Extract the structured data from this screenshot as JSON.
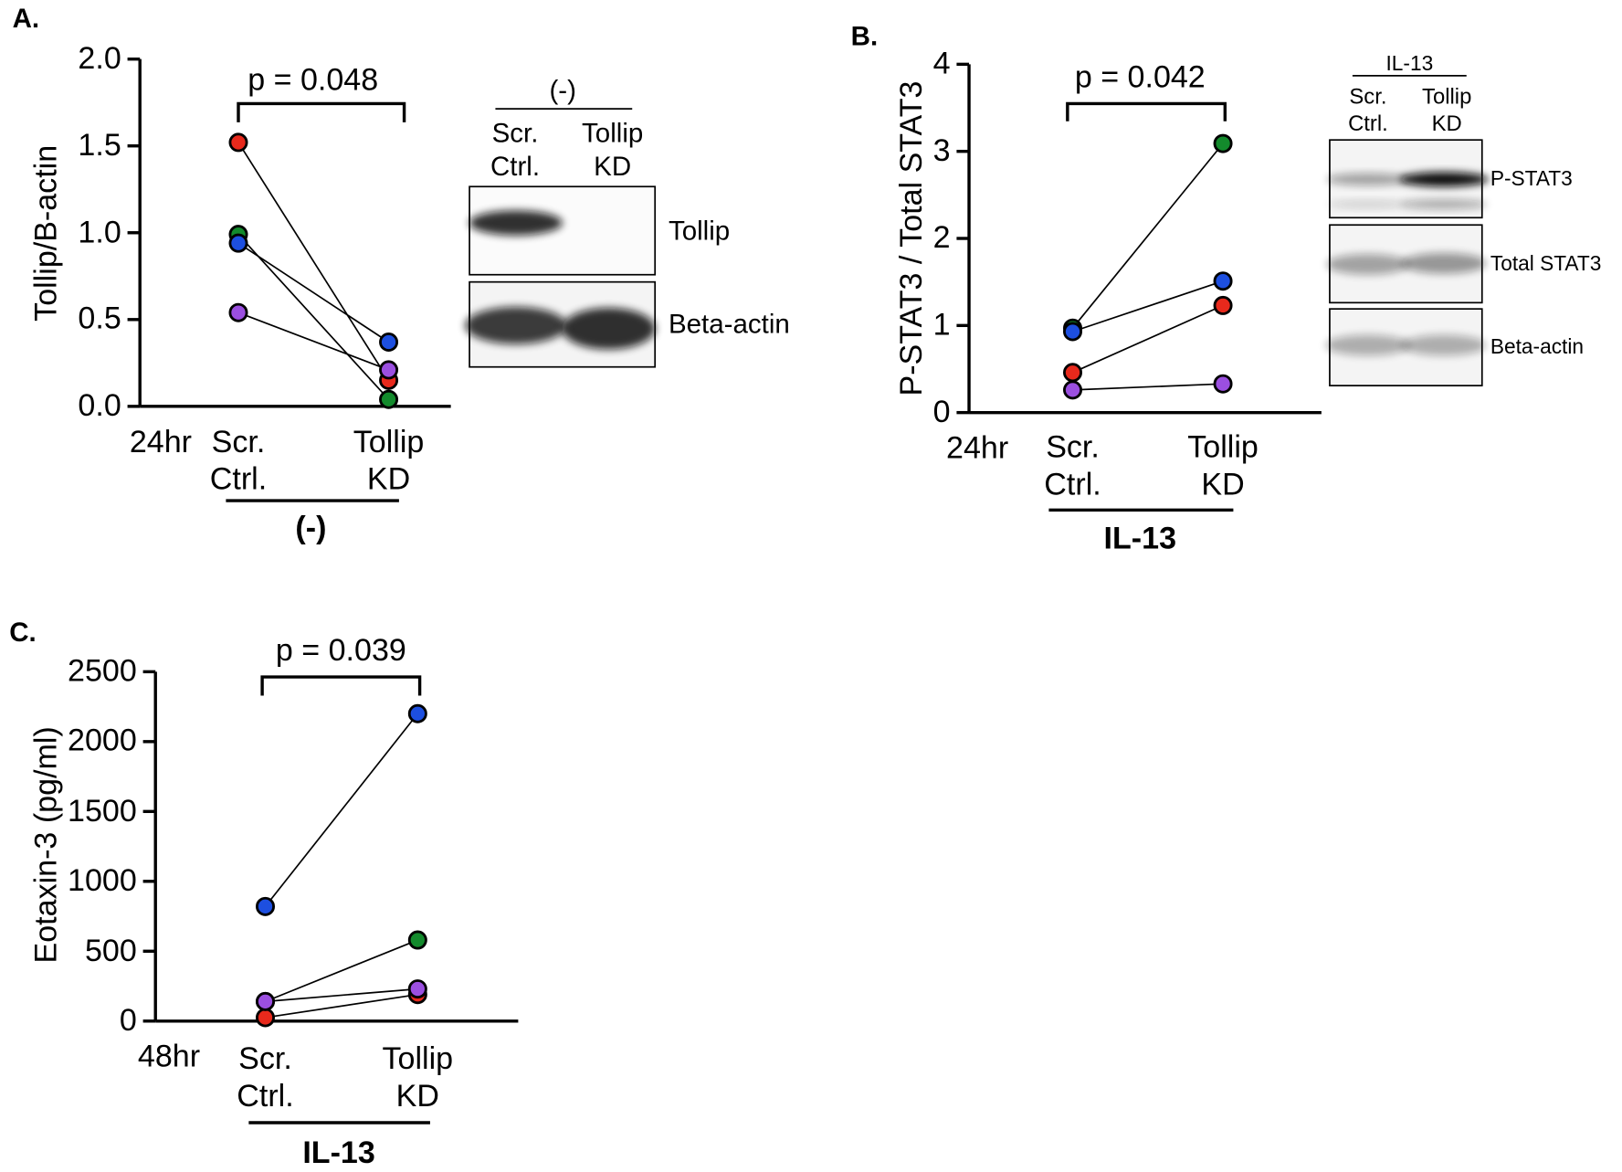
{
  "chart_data": [
    {
      "type": "line",
      "panel_label": "A.",
      "ylabel": "Tollip/B-actin",
      "time_label": "24hr",
      "categories": [
        "Scr.\nCtrl.",
        "Tollip\nKD"
      ],
      "group_label": "(-)",
      "annotation": "p = 0.048",
      "ylim": [
        0,
        2
      ],
      "yticks": [
        {
          "value": 0,
          "label": "0.0"
        },
        {
          "value": 0.5,
          "label": "0.5"
        },
        {
          "value": 1,
          "label": "1.0"
        },
        {
          "value": 1.5,
          "label": "1.5"
        },
        {
          "value": 2,
          "label": "2.0"
        }
      ],
      "series": [
        {
          "color": "#e8291c",
          "values": [
            1.52,
            0.15
          ]
        },
        {
          "color": "#138a2c",
          "values": [
            0.99,
            0.04
          ]
        },
        {
          "color": "#1d4fe0",
          "values": [
            0.94,
            0.37
          ]
        },
        {
          "color": "#9b4fe0",
          "values": [
            0.54,
            0.21
          ]
        }
      ],
      "blot": {
        "header": "(-)",
        "lanes": [
          "Scr.\nCtrl.",
          "Tollip\nKD"
        ],
        "bands": [
          "Tollip",
          "Beta-actin"
        ]
      }
    },
    {
      "type": "line",
      "panel_label": "B.",
      "ylabel": "P-STAT3 / Total STAT3",
      "time_label": "24hr",
      "categories": [
        "Scr.\nCtrl.",
        "Tollip\nKD"
      ],
      "group_label": "IL-13",
      "annotation": "p = 0.042",
      "ylim": [
        0,
        4
      ],
      "yticks": [
        0,
        1,
        2,
        3,
        4
      ],
      "series": [
        {
          "color": "#138a2c",
          "values": [
            0.97,
            3.09
          ]
        },
        {
          "color": "#1d4fe0",
          "values": [
            0.93,
            1.51
          ]
        },
        {
          "color": "#e8291c",
          "values": [
            0.46,
            1.23
          ]
        },
        {
          "color": "#9b4fe0",
          "values": [
            0.26,
            0.33
          ]
        }
      ],
      "blot": {
        "header": "IL-13",
        "lanes": [
          "Scr.\nCtrl.",
          "Tollip\nKD"
        ],
        "bands": [
          "P-STAT3",
          "Total STAT3",
          "Beta-actin"
        ]
      }
    },
    {
      "type": "line",
      "panel_label": "C.",
      "ylabel": "Eotaxin-3 (pg/ml)",
      "time_label": "48hr",
      "categories": [
        "Scr.\nCtrl.",
        "Tollip\nKD"
      ],
      "group_label": "IL-13",
      "annotation": "p = 0.039",
      "ylim": [
        0,
        2500
      ],
      "yticks": [
        0,
        500,
        1000,
        1500,
        2000,
        2500
      ],
      "series": [
        {
          "color": "#1d4fe0",
          "values": [
            820,
            2200
          ]
        },
        {
          "color": "#138a2c",
          "values": [
            140,
            580
          ]
        },
        {
          "color": "#e8291c",
          "values": [
            25,
            190
          ]
        },
        {
          "color": "#9b4fe0",
          "values": [
            140,
            230
          ]
        }
      ]
    }
  ]
}
